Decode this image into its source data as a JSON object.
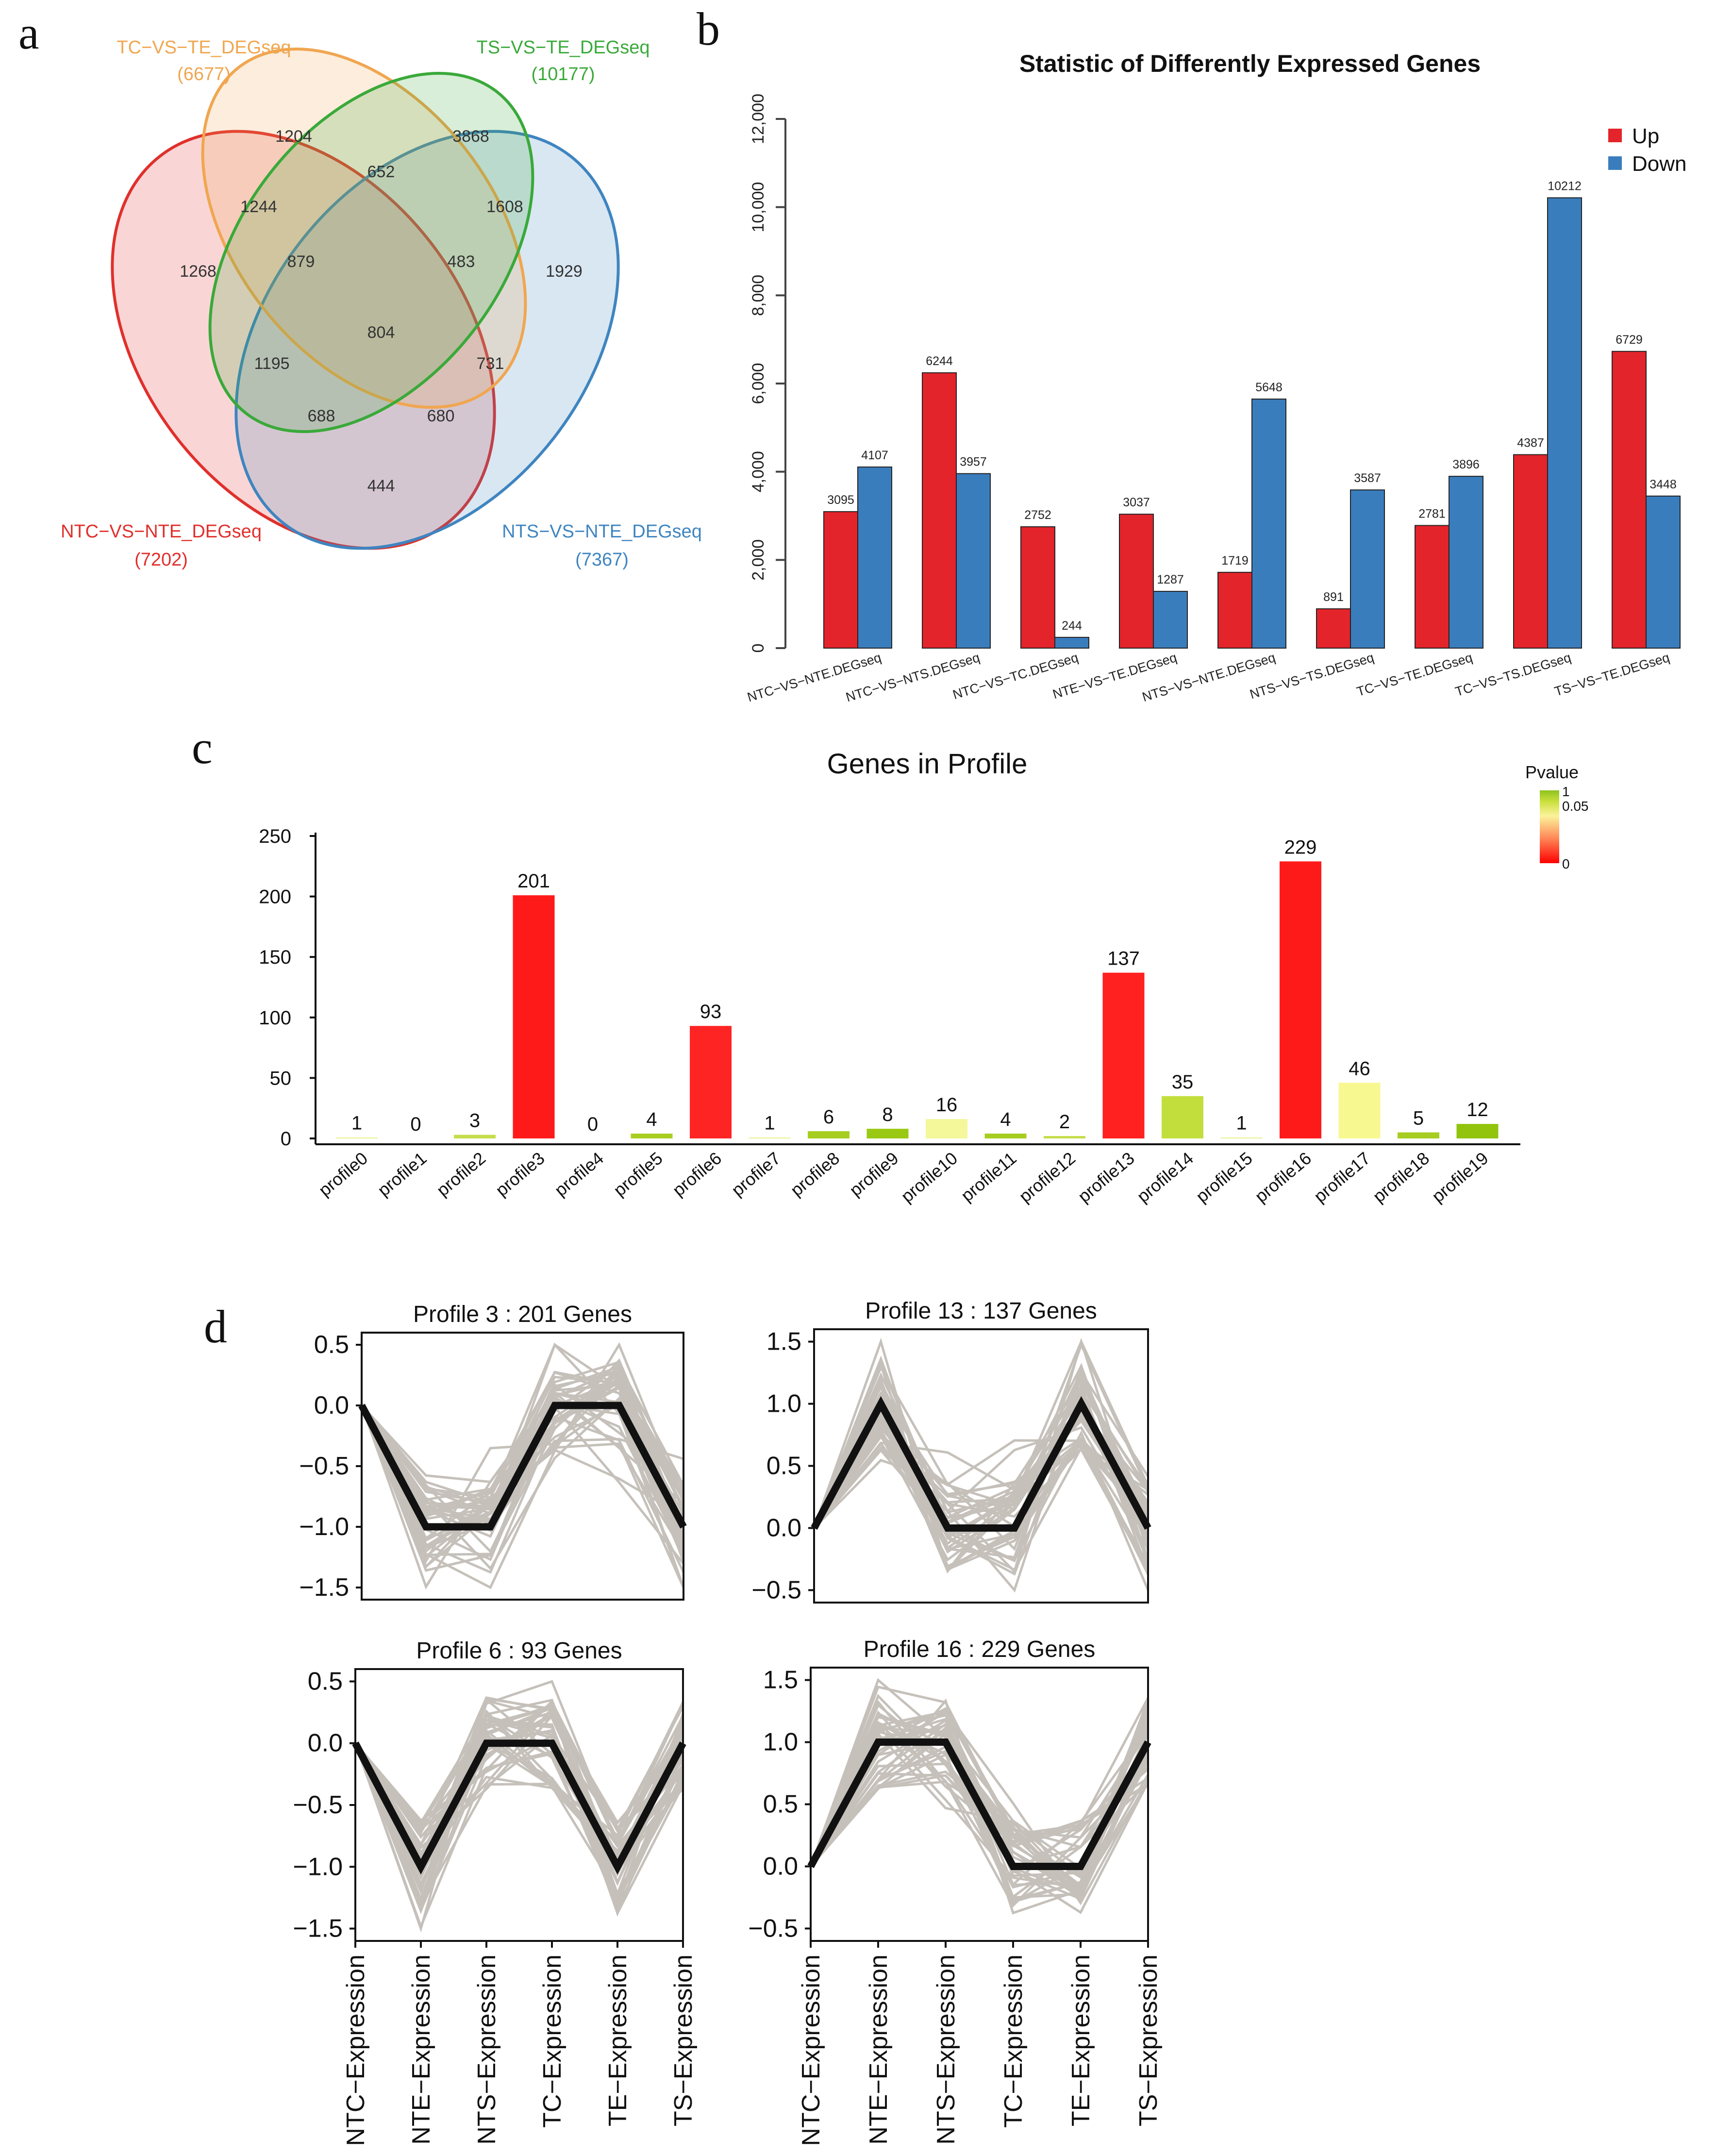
{
  "panels": {
    "a": "a",
    "b": "b",
    "c": "c",
    "d": "d"
  },
  "venn": {
    "sets": [
      {
        "name": "TC−VS−TE_DEGseq",
        "count": "(6677)",
        "color": "#f0a650"
      },
      {
        "name": "TS−VS−TE_DEGseq",
        "count": "(10177)",
        "color": "#3aa93a"
      },
      {
        "name": "NTC−VS−NTE_DEGseq",
        "count": "(7202)",
        "color": "#e0302c"
      },
      {
        "name": "NTS−VS−NTE_DEGseq",
        "count": "(7367)",
        "color": "#3f85c0"
      }
    ],
    "regions": [
      "1204",
      "3868",
      "652",
      "1608",
      "1244",
      "879",
      "483",
      "1268",
      "1929",
      "804",
      "1195",
      "731",
      "688",
      "680",
      "444"
    ]
  },
  "chart_data": [
    {
      "type": "bar",
      "title": "Statistic of Differently Expressed Genes",
      "categories": [
        "NTC−VS−NTE.DEGseq",
        "NTC−VS−NTS.DEGseq",
        "NTC−VS−TC.DEGseq",
        "NTE−VS−TE.DEGseq",
        "NTS−VS−NTE.DEGseq",
        "NTS−VS−TS.DEGseq",
        "TC−VS−TE.DEGseq",
        "TC−VS−TS.DEGseq",
        "TS−VS−TE.DEGseq"
      ],
      "series": [
        {
          "name": "Up",
          "color": "#e3242b",
          "values": [
            3095,
            6244,
            2752,
            3037,
            1719,
            891,
            2781,
            4387,
            6729
          ]
        },
        {
          "name": "Down",
          "color": "#3a7dbd",
          "values": [
            4107,
            3957,
            244,
            1287,
            5648,
            3587,
            3896,
            10212,
            3448
          ]
        }
      ],
      "yticks": [
        "0",
        "2,000",
        "4,000",
        "6,000",
        "8,000",
        "10,000",
        "12,000"
      ],
      "ylim": [
        0,
        12000
      ],
      "legend": "top-right"
    },
    {
      "type": "bar",
      "title": "Genes in Profile",
      "categories": [
        "profile0",
        "profile1",
        "profile2",
        "profile3",
        "profile4",
        "profile5",
        "profile6",
        "profile7",
        "profile8",
        "profile9",
        "profile10",
        "profile11",
        "profile12",
        "profile13",
        "profile14",
        "profile15",
        "profile16",
        "profile17",
        "profile18",
        "profile19"
      ],
      "values": [
        1,
        0,
        3,
        201,
        0,
        4,
        93,
        1,
        6,
        8,
        16,
        4,
        2,
        137,
        35,
        1,
        229,
        46,
        5,
        12
      ],
      "colors": [
        "#eef5b0",
        "#ffffff",
        "#c5dd4a",
        "#ff1a1a",
        "#ffffff",
        "#a8cd20",
        "#ff2424",
        "#eef5b0",
        "#a6cd1f",
        "#9ac914",
        "#f4f79a",
        "#a6cd1f",
        "#c5dd4a",
        "#ff2020",
        "#c2de3c",
        "#eef5b0",
        "#ff1a1a",
        "#f8f890",
        "#a6cd1f",
        "#92c40e"
      ],
      "yticks": [
        "0",
        "50",
        "100",
        "150",
        "200",
        "250"
      ],
      "ylim": [
        0,
        250
      ],
      "legend": {
        "title": "Pvalue",
        "labels": [
          "1",
          "0.05",
          "0"
        ]
      }
    },
    {
      "type": "line",
      "title": "Profile 3 : 201 Genes",
      "x": [
        "NTC−Expression",
        "NTE−Expression",
        "NTS−Expression",
        "TC−Expression",
        "TE−Expression",
        "TS−Expression"
      ],
      "model": [
        0,
        -1,
        -1,
        0,
        0,
        -1
      ],
      "yticks": [
        "0.5",
        "0.0",
        "−0.5",
        "−1.0",
        "−1.5"
      ],
      "ylim": [
        -1.6,
        0.6
      ]
    },
    {
      "type": "line",
      "title": "Profile 13 : 137 Genes",
      "x": [
        "NTC−Expression",
        "NTE−Expression",
        "NTS−Expression",
        "TC−Expression",
        "TE−Expression",
        "TS−Expression"
      ],
      "model": [
        0,
        1,
        0,
        0,
        1,
        0
      ],
      "yticks": [
        "1.5",
        "1.0",
        "0.5",
        "0.0",
        "−0.5"
      ],
      "ylim": [
        -0.6,
        1.6
      ]
    },
    {
      "type": "line",
      "title": "Profile 6 : 93 Genes",
      "x": [
        "NTC−Expression",
        "NTE−Expression",
        "NTS−Expression",
        "TC−Expression",
        "TE−Expression",
        "TS−Expression"
      ],
      "model": [
        0,
        -1,
        0,
        0,
        -1,
        0
      ],
      "yticks": [
        "0.5",
        "0.0",
        "−0.5",
        "−1.0",
        "−1.5"
      ],
      "ylim": [
        -1.6,
        0.6
      ]
    },
    {
      "type": "line",
      "title": "Profile 16 : 229 Genes",
      "x": [
        "NTC−Expression",
        "NTE−Expression",
        "NTS−Expression",
        "TC−Expression",
        "TE−Expression",
        "TS−Expression"
      ],
      "model": [
        0,
        1,
        1,
        0,
        0,
        1
      ],
      "yticks": [
        "1.5",
        "1.0",
        "0.5",
        "0.0",
        "−0.5"
      ],
      "ylim": [
        -0.6,
        1.6
      ]
    }
  ]
}
